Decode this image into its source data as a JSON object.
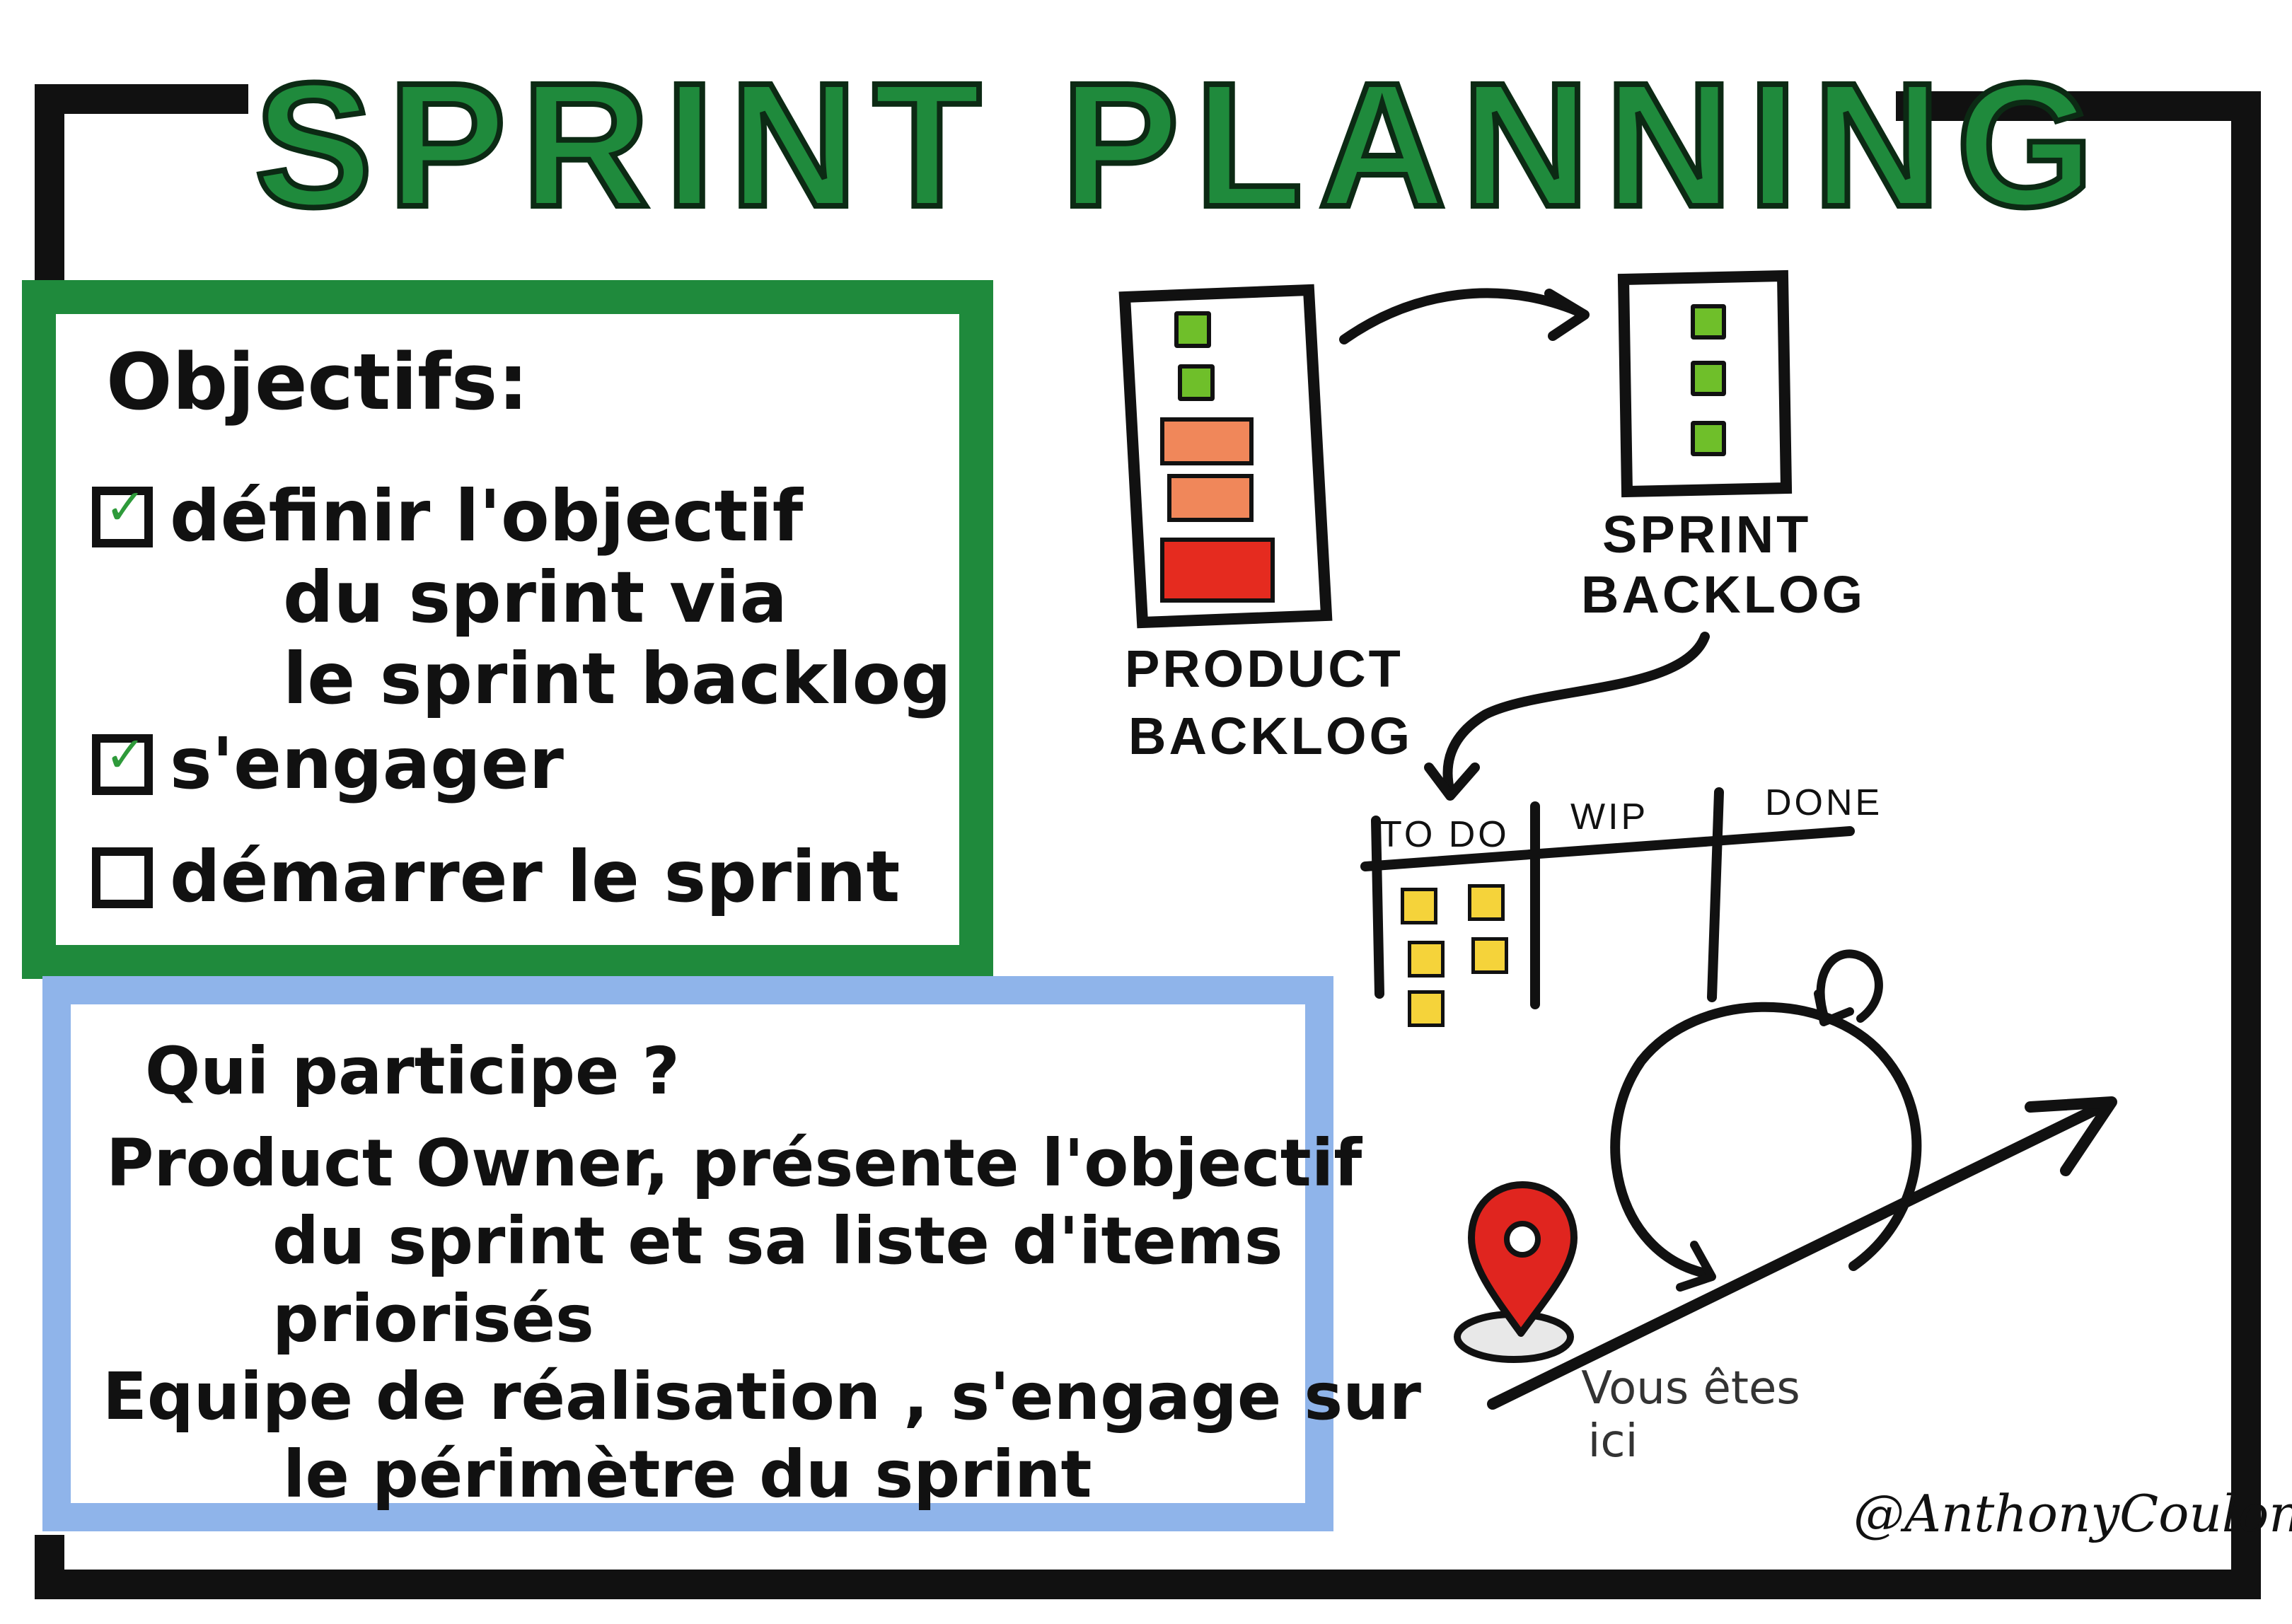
{
  "title": "SPRINT PLANNING",
  "objectives": {
    "heading": "Objectifs:",
    "items": [
      {
        "lines": [
          "définir l'objectif",
          "du sprint via",
          "le sprint backlog"
        ],
        "checked": true
      },
      {
        "lines": [
          "s'engager"
        ],
        "checked": true
      },
      {
        "lines": [
          "démarrer le sprint"
        ],
        "checked": false
      }
    ]
  },
  "participants": {
    "question": "Qui participe ?",
    "lines": [
      "Product Owner, présente l'objectif",
      "du sprint et sa liste d'items",
      "priorisés",
      "Equipe de réalisation , s'engage sur",
      "le périmètre du sprint"
    ]
  },
  "product_backlog": {
    "label_line1": "PRODUCT",
    "label_line2": "BACKLOG",
    "item_colors": [
      "#6fbf2a",
      "#6fbf2a",
      "#f0875a",
      "#f0875a",
      "#e52b1f"
    ]
  },
  "sprint_backlog": {
    "label_line1": "SPRINT",
    "label_line2": "BACKLOG",
    "item_color": "#6fbf2a"
  },
  "board": {
    "columns": [
      "TO DO",
      "WIP",
      "DONE"
    ],
    "sticky_color": "#f5d33a"
  },
  "location": {
    "label_line1": "Vous êtes",
    "label_line2": "ici",
    "pin_color": "#e0251f"
  },
  "signature": "@AnthonyCoulon",
  "colors": {
    "title_green": "#1f8a3c",
    "objectives_frame": "#1f8a3c",
    "participants_frame": "#8fb4ea"
  }
}
